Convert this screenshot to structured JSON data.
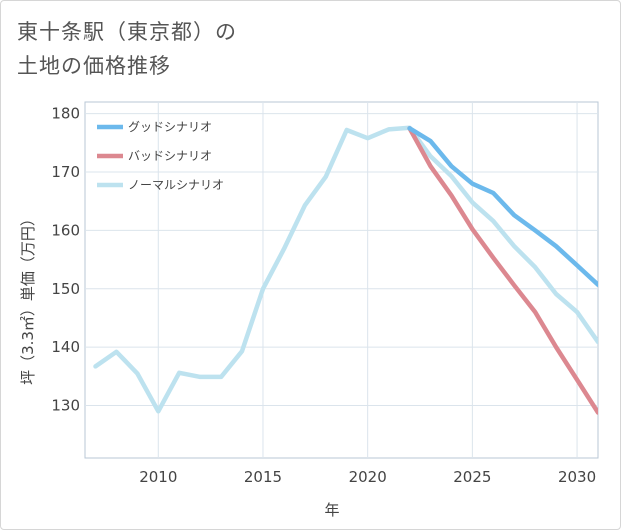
{
  "title": [
    "東十条駅（東京都）の",
    "土地の価格推移"
  ],
  "chart_data": {
    "type": "line",
    "xlabel": "年",
    "ylabel": "坪（3.3㎡）単価（万円）",
    "xlim": [
      2006.5,
      2031
    ],
    "ylim": [
      121,
      182
    ],
    "xticks": [
      2010,
      2015,
      2020,
      2025,
      2030
    ],
    "yticks": [
      130,
      140,
      150,
      160,
      170,
      180
    ],
    "grid": true,
    "legend_position": "top-left",
    "series": [
      {
        "name": "グッドシナリオ",
        "color": "#6cb9ec",
        "x": [
          2022,
          2023,
          2024,
          2025,
          2026,
          2027,
          2028,
          2029,
          2030,
          2031
        ],
        "y": [
          177.5,
          175.3,
          171.0,
          168.0,
          166.4,
          162.6,
          160.0,
          157.3,
          154.0,
          150.7
        ]
      },
      {
        "name": "バッドシナリオ",
        "color": "#dc8890",
        "x": [
          2022,
          2023,
          2024,
          2025,
          2026,
          2027,
          2028,
          2029,
          2030,
          2031
        ],
        "y": [
          177.5,
          171.0,
          166.0,
          160.2,
          155.3,
          150.6,
          146.0,
          140.0,
          134.4,
          128.8
        ]
      },
      {
        "name": "ノーマルシナリオ",
        "color": "#bde2ef",
        "x": [
          2007,
          2008,
          2009,
          2010,
          2011,
          2012,
          2013,
          2014,
          2015,
          2016,
          2017,
          2018,
          2019,
          2020,
          2021,
          2022,
          2023,
          2024,
          2025,
          2026,
          2027,
          2028,
          2029,
          2030,
          2031
        ],
        "y": [
          136.7,
          139.2,
          135.5,
          129.0,
          135.6,
          134.9,
          134.9,
          139.3,
          150.0,
          156.8,
          164.3,
          169.2,
          177.2,
          175.8,
          177.3,
          177.6,
          172.7,
          169.3,
          164.8,
          161.6,
          157.3,
          153.7,
          149.1,
          146.0,
          140.9
        ]
      }
    ]
  }
}
